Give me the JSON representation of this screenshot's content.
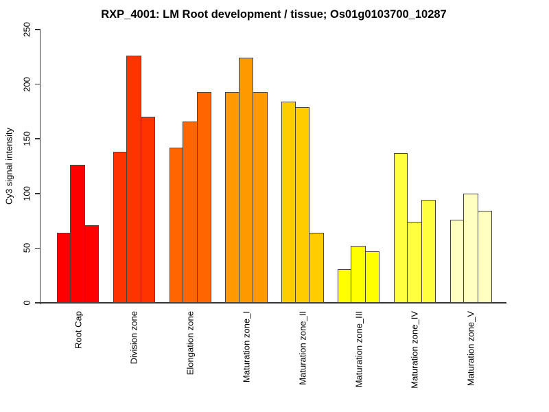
{
  "title": "RXP_4001: LM Root development / tissue; Os01g0103700_10287",
  "chart_data": {
    "type": "bar",
    "title": "RXP_4001: LM Root development / tissue; Os01g0103700_10287",
    "xlabel": "",
    "ylabel": "Cy3 signal intensity",
    "ylim": [
      0,
      250
    ],
    "yticks": [
      0,
      50,
      100,
      150,
      200,
      250
    ],
    "grid": false,
    "legend_position": "none",
    "bars_per_group": 3,
    "label_rotation_degrees": 90,
    "bar_border_color": "#454540",
    "axis_color": "#333333",
    "background_color": "#ffffff",
    "categories": [
      "Root Cap",
      "Division zone",
      "Elongation zone",
      "Maturation zone_I",
      "Maturation zone_II",
      "Maturation zone_III",
      "Maturation zone_IV",
      "Maturation zone_V"
    ],
    "groups": [
      {
        "label": "Root Cap",
        "color": "#FF0000",
        "values": [
          64,
          126,
          71
        ]
      },
      {
        "label": "Division zone",
        "color": "#FF3300",
        "values": [
          138,
          226,
          170
        ]
      },
      {
        "label": "Elongation zone",
        "color": "#FF6600",
        "values": [
          142,
          166,
          193
        ]
      },
      {
        "label": "Maturation zone_I",
        "color": "#FF9900",
        "values": [
          193,
          224,
          193
        ]
      },
      {
        "label": "Maturation zone_II",
        "color": "#FFCC00",
        "values": [
          184,
          179,
          64
        ]
      },
      {
        "label": "Maturation zone_III",
        "color": "#FFFF00",
        "values": [
          31,
          52,
          47
        ]
      },
      {
        "label": "Maturation zone_IV",
        "color": "#FFFF40",
        "values": [
          137,
          74,
          94
        ]
      },
      {
        "label": "Maturation zone_V",
        "color": "#FFFFBF",
        "values": [
          76,
          100,
          84
        ]
      }
    ]
  }
}
